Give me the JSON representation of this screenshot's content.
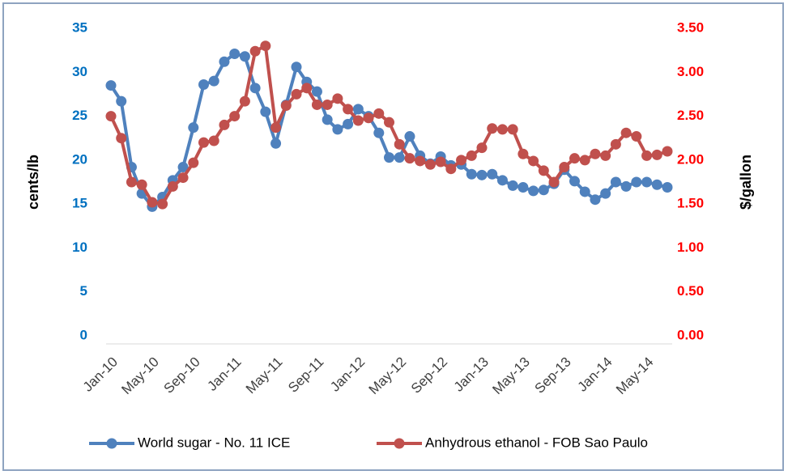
{
  "chart_data": {
    "type": "line",
    "categories": [
      "Jan-10",
      null,
      null,
      null,
      "May-10",
      null,
      null,
      null,
      "Sep-10",
      null,
      null,
      null,
      "Jan-11",
      null,
      null,
      null,
      "May-11",
      null,
      null,
      null,
      "Sep-11",
      null,
      null,
      null,
      "Jan-12",
      null,
      null,
      null,
      "May-12",
      null,
      null,
      null,
      "Sep-12",
      null,
      null,
      null,
      "Jan-13",
      null,
      null,
      null,
      "May-13",
      null,
      null,
      null,
      "Sep-13",
      null,
      null,
      null,
      "Jan-14",
      null,
      null,
      null,
      "May-14",
      null,
      null
    ],
    "ylabel": "cents/lb",
    "y2label": "$/gallon",
    "ylim": [
      0,
      35
    ],
    "yticks": [
      0,
      5,
      10,
      15,
      20,
      25,
      30,
      35
    ],
    "y2lim": [
      0,
      3.5
    ],
    "y2ticks": [
      {
        "value": 0,
        "label": "0.00"
      },
      {
        "value": 0.5,
        "label": "0.50"
      },
      {
        "value": 1,
        "label": "1.00"
      },
      {
        "value": 1.5,
        "label": "1.50"
      },
      {
        "value": 2,
        "label": "2.00"
      },
      {
        "value": 2.5,
        "label": "2.50"
      },
      {
        "value": 3,
        "label": "3.00"
      },
      {
        "value": 3.5,
        "label": "3.50"
      }
    ],
    "ytick_color": "#0070c0",
    "y2tick_color": "#ff0000",
    "legend": "bottom",
    "series": [
      {
        "name": "World sugar - No. 11 ICE",
        "color": "#4f81bd",
        "values": [
          28.5,
          26.7,
          19.2,
          16.2,
          14.7,
          15.8,
          17.7,
          19.2,
          23.7,
          28.6,
          29.0,
          31.2,
          32.1,
          31.8,
          28.2,
          25.5,
          21.9,
          26.3,
          30.6,
          28.9,
          27.8,
          24.6,
          23.5,
          24.1,
          25.8,
          25.0,
          23.1,
          20.3,
          20.3,
          22.7,
          20.5,
          19.6,
          20.4,
          19.4,
          19.5,
          18.4,
          18.3,
          18.4,
          17.7,
          17.1,
          16.9,
          16.5,
          16.6,
          17.3,
          18.9,
          17.6,
          16.4,
          15.5,
          16.2,
          17.5,
          17.0,
          17.5,
          17.5,
          17.2,
          16.9
        ]
      },
      {
        "name": "Anhydrous ethanol - FOB Sao Paulo",
        "color": "#c0504d",
        "axis": "y2",
        "values": [
          2.5,
          2.25,
          1.75,
          1.72,
          1.52,
          1.5,
          1.7,
          1.8,
          1.97,
          2.2,
          2.22,
          2.4,
          2.5,
          2.67,
          3.24,
          3.3,
          2.37,
          2.62,
          2.75,
          2.82,
          2.63,
          2.63,
          2.7,
          2.58,
          2.45,
          2.48,
          2.53,
          2.43,
          2.18,
          2.02,
          1.99,
          1.95,
          1.98,
          1.9,
          2.0,
          2.05,
          2.14,
          2.36,
          2.35,
          2.35,
          2.07,
          1.99,
          1.88,
          1.75,
          1.92,
          2.02,
          2.0,
          2.07,
          2.05,
          2.18,
          2.31,
          2.27,
          2.05,
          2.06,
          2.1
        ]
      }
    ]
  }
}
